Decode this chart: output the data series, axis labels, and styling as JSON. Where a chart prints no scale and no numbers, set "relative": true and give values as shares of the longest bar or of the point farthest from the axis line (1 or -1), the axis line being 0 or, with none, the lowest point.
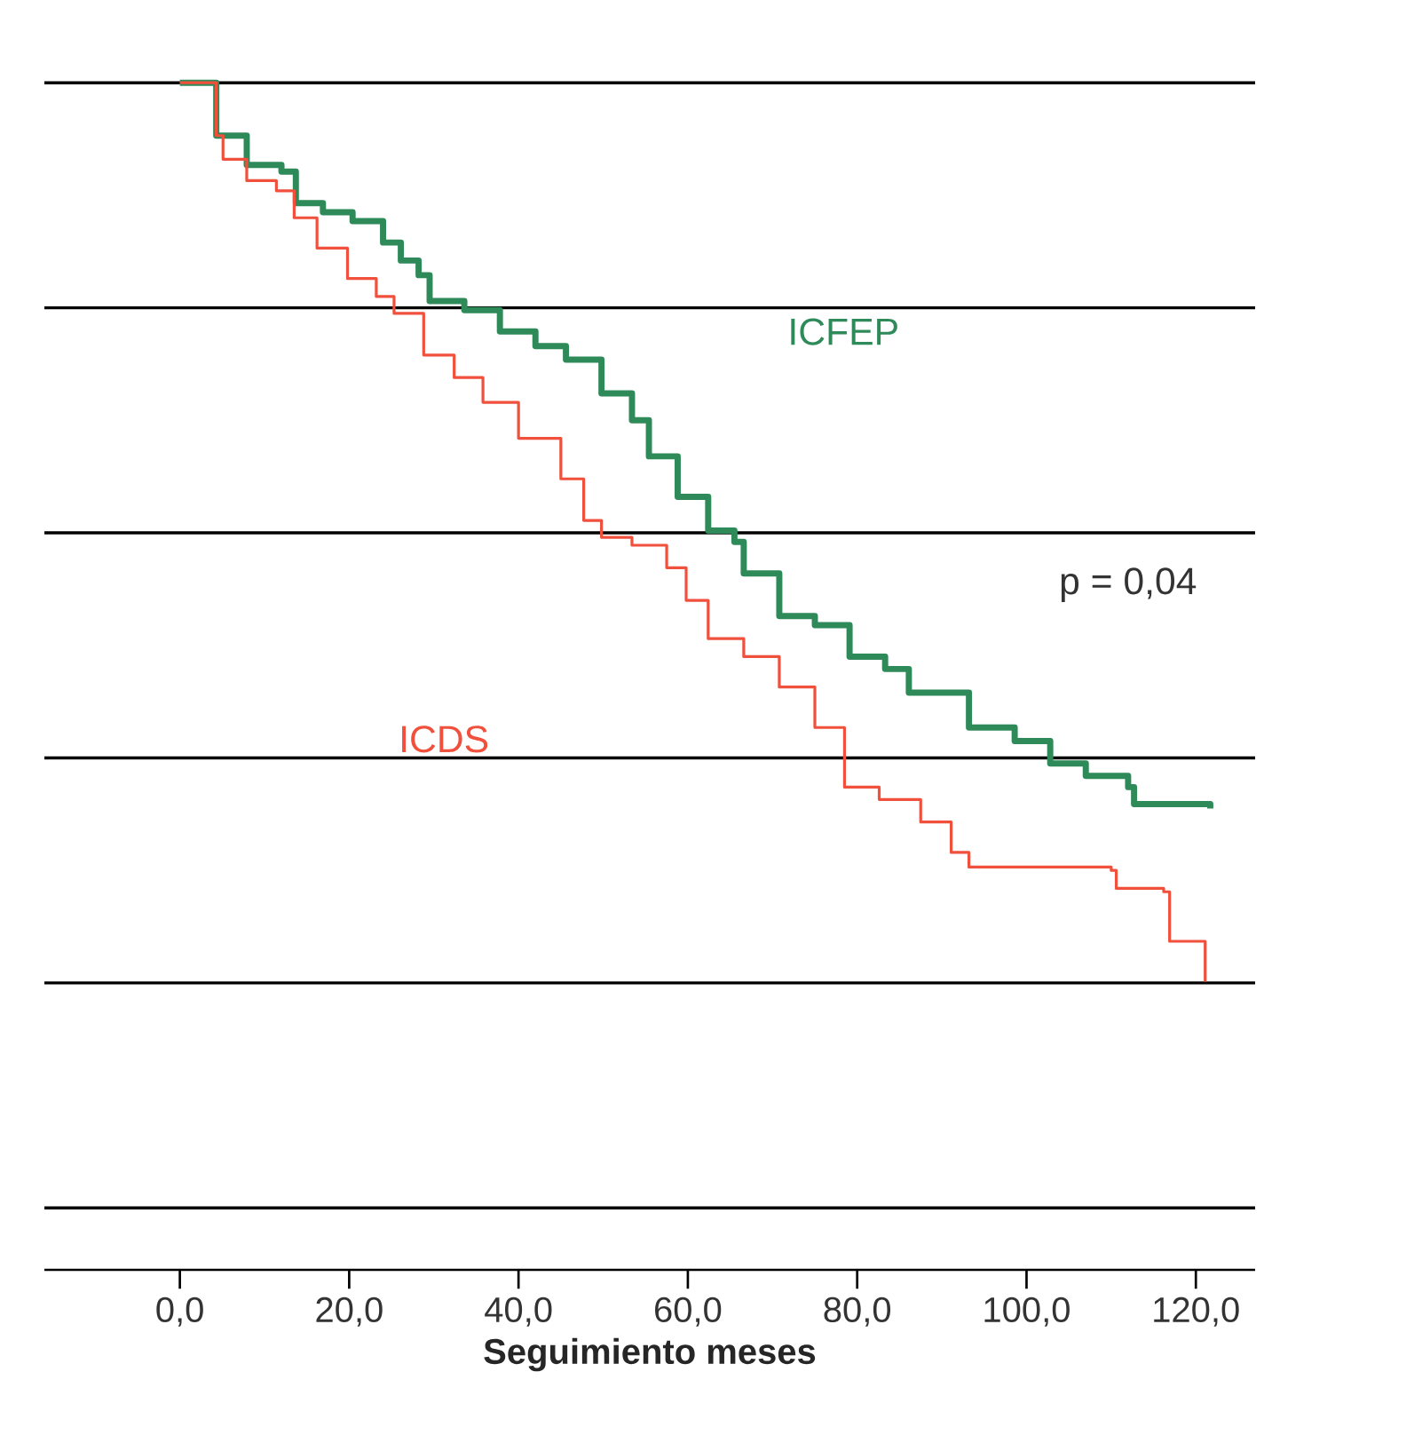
{
  "chart_data": {
    "type": "step",
    "relative": true,
    "xlabel": "Seguimiento meses",
    "xlim": [
      -16,
      127
    ],
    "xticks": [
      {
        "value": 0,
        "label": "0,0"
      },
      {
        "value": 20,
        "label": "20,0"
      },
      {
        "value": 40,
        "label": "40,0"
      },
      {
        "value": 60,
        "label": "60,0"
      },
      {
        "value": 80,
        "label": "80,0"
      },
      {
        "value": 100,
        "label": "100,0"
      },
      {
        "value": 120,
        "label": "120,0"
      }
    ],
    "grid": "y",
    "annotations": [
      "p = 0,04"
    ],
    "series": [
      {
        "name": "ICFEP",
        "color": "#2f8a5a",
        "x": [
          0,
          4.3,
          7.9,
          12,
          13.7,
          16.9,
          20.4,
          24,
          26.1,
          28.2,
          29.5,
          33.6,
          37.8,
          42,
          45.6,
          49.8,
          53.4,
          55.4,
          58.8,
          62.4,
          65.5,
          66.6,
          70.8,
          75,
          79.1,
          83.3,
          86.1,
          93.2,
          98.6,
          102.8,
          107,
          112,
          112.7,
          121.7
        ],
        "values": [
          1,
          0.953,
          0.927,
          0.921,
          0.893,
          0.885,
          0.877,
          0.858,
          0.842,
          0.829,
          0.806,
          0.798,
          0.779,
          0.766,
          0.754,
          0.724,
          0.7,
          0.668,
          0.632,
          0.602,
          0.592,
          0.564,
          0.526,
          0.518,
          0.49,
          0.479,
          0.458,
          0.427,
          0.415,
          0.395,
          0.384,
          0.374,
          0.359,
          0.355
        ]
      },
      {
        "name": "ICDS",
        "color": "#f0503c",
        "x": [
          0,
          4.3,
          5.1,
          7.9,
          11.4,
          13.5,
          16.2,
          19.8,
          23.2,
          25.3,
          28.8,
          32.4,
          35.8,
          40,
          45,
          47.7,
          49.8,
          53.4,
          57.5,
          59.8,
          62.4,
          66.6,
          70.8,
          75,
          78.5,
          82.6,
          87.5,
          91.1,
          93.2,
          110,
          110.6,
          116.2,
          116.9,
          121.1,
          121.1
        ],
        "values": [
          1,
          0.953,
          0.932,
          0.913,
          0.904,
          0.88,
          0.853,
          0.826,
          0.81,
          0.795,
          0.758,
          0.738,
          0.716,
          0.684,
          0.648,
          0.611,
          0.596,
          0.589,
          0.569,
          0.54,
          0.506,
          0.49,
          0.463,
          0.427,
          0.374,
          0.363,
          0.343,
          0.316,
          0.303,
          0.3,
          0.284,
          0.281,
          0.237,
          0.234,
          0.201
        ]
      }
    ]
  }
}
